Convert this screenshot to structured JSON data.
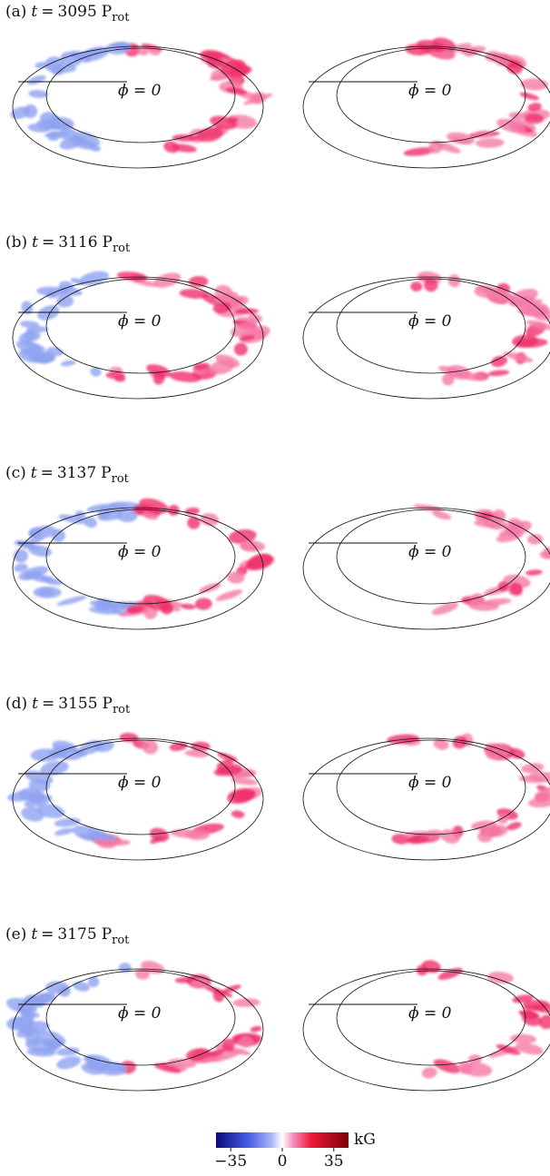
{
  "equals": "=",
  "phi_label": "ϕ = 0",
  "panels": [
    {
      "label": "(a)",
      "variable": "t",
      "time": "3095",
      "unit": "P",
      "unit_sub": "rot"
    },
    {
      "label": "(b)",
      "variable": "t",
      "time": "3116",
      "unit": "P",
      "unit_sub": "rot"
    },
    {
      "label": "(c)",
      "variable": "t",
      "time": "3137",
      "unit": "P",
      "unit_sub": "rot"
    },
    {
      "label": "(d)",
      "variable": "t",
      "time": "3155",
      "unit": "P",
      "unit_sub": "rot"
    },
    {
      "label": "(e)",
      "variable": "t",
      "time": "3175",
      "unit": "P",
      "unit_sub": "rot"
    }
  ],
  "colorbar": {
    "unit": "kG",
    "lim": [
      -45,
      45
    ],
    "ticks": [
      {
        "value": -35,
        "label": "−35"
      },
      0,
      35
    ]
  }
}
